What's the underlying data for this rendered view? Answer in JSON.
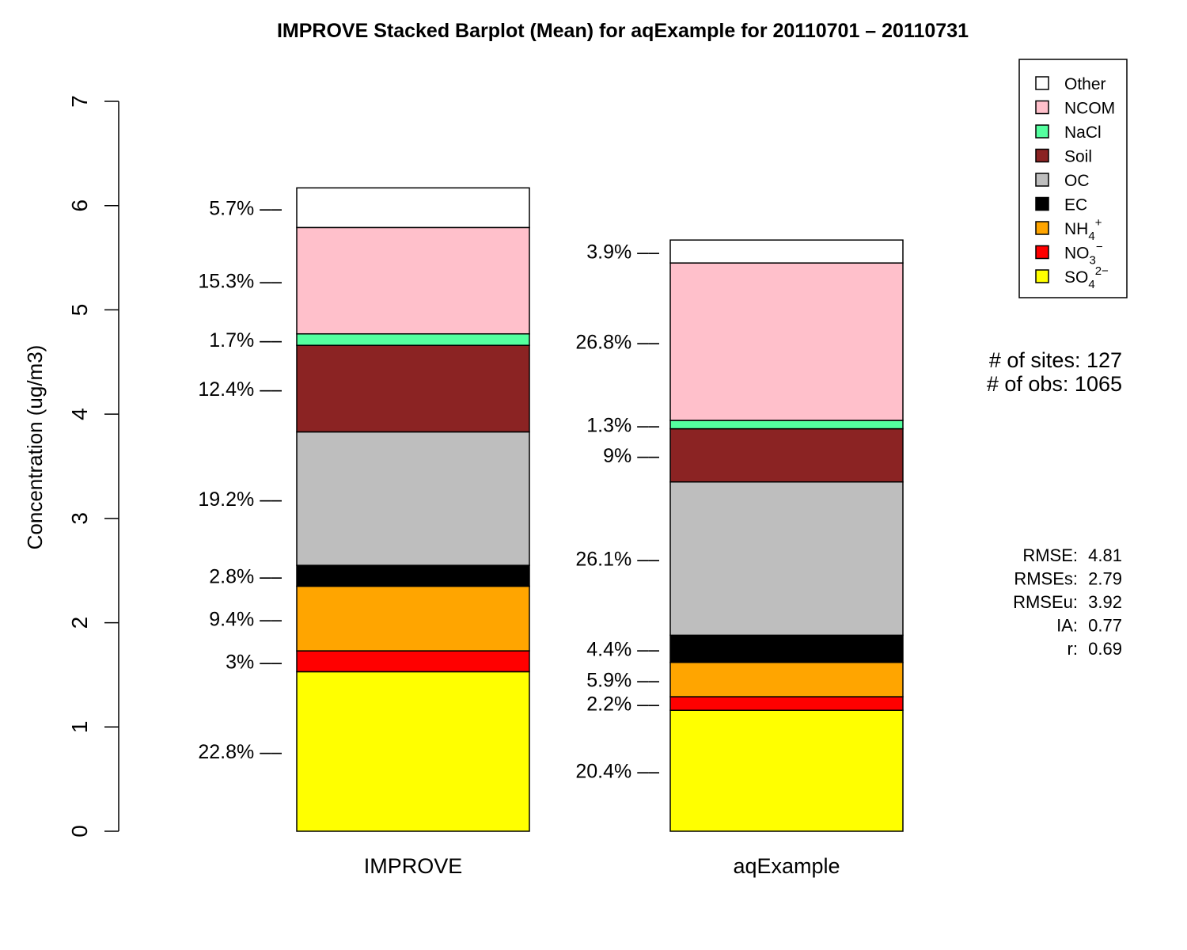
{
  "chart_data": {
    "type": "bar",
    "stacked": true,
    "title": "IMPROVE Stacked Barplot (Mean) for aqExample for 20110701 – 20110731",
    "ylabel": "Concentration (ug/m3)",
    "xlabel": "",
    "ylim": [
      0,
      7
    ],
    "yticks": [
      "0",
      "1",
      "2",
      "3",
      "4",
      "5",
      "6",
      "7"
    ],
    "categories": [
      "IMPROVE",
      "aqExample"
    ],
    "series": [
      {
        "name": "SO4",
        "sup": "2−",
        "color": "#FFFF00",
        "values": [
          1.53,
          1.16
        ],
        "labels": [
          "22.8% ––",
          "20.4% ––"
        ]
      },
      {
        "name": "NO3",
        "sup": "−",
        "color": "#FF0000",
        "values": [
          0.2,
          0.13
        ],
        "labels": [
          "3% ––",
          "2.2% ––"
        ]
      },
      {
        "name": "NH4",
        "sup": "+",
        "color": "#FFA500",
        "values": [
          0.62,
          0.33
        ],
        "labels": [
          "9.4% ––",
          "5.9% ––"
        ]
      },
      {
        "name": "EC",
        "color": "#000000",
        "values": [
          0.2,
          0.26
        ],
        "labels": [
          "2.8% ––",
          "4.4% ––"
        ]
      },
      {
        "name": "OC",
        "color": "#BEBEBE",
        "values": [
          1.28,
          1.47
        ],
        "labels": [
          "19.2% ––",
          "26.1% ––"
        ]
      },
      {
        "name": "Soil",
        "color": "#8B2323",
        "values": [
          0.83,
          0.51
        ],
        "labels": [
          "12.4% ––",
          "9% ––"
        ]
      },
      {
        "name": "NaCl",
        "color": "#54FF9F",
        "values": [
          0.11,
          0.08
        ],
        "labels": [
          "1.7% ––",
          "1.3% ––"
        ]
      },
      {
        "name": "NCOM",
        "color": "#FFC0CB",
        "values": [
          1.02,
          1.51
        ],
        "labels": [
          "15.3% ––",
          "26.8% ––"
        ]
      },
      {
        "name": "Other",
        "color": "#FFFFFF",
        "values": [
          0.38,
          0.22
        ],
        "labels": [
          "5.7% ––",
          "3.9% ––"
        ]
      }
    ],
    "legend_order": [
      "Other",
      "NCOM",
      "NaCl",
      "Soil",
      "OC",
      "EC",
      "NH4",
      "NO3",
      "SO4"
    ],
    "legend_position": "top-right",
    "grid": false
  },
  "stats": {
    "sites": "# of sites: 127",
    "obs": "# of obs: 1065"
  },
  "metrics": [
    {
      "label": "RMSE:",
      "value": "4.81"
    },
    {
      "label": "RMSEs:",
      "value": "2.79"
    },
    {
      "label": "RMSEu:",
      "value": "3.92"
    },
    {
      "label": "IA:",
      "value": "0.77"
    },
    {
      "label": "r:",
      "value": "0.69"
    }
  ]
}
